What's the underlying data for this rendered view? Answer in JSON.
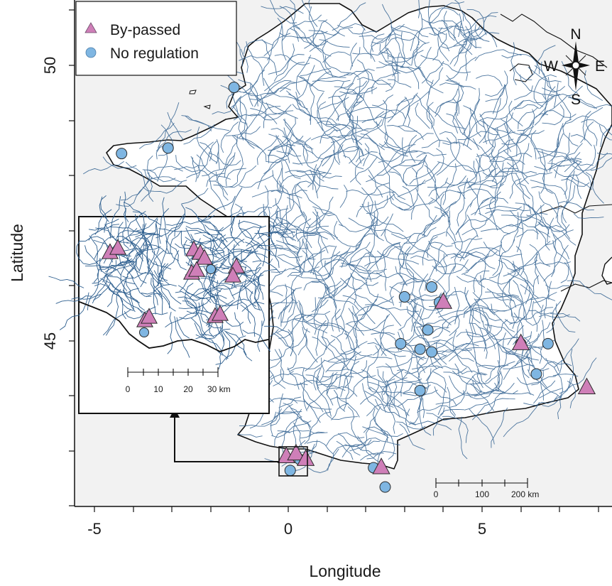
{
  "axes": {
    "xlabel": "Longitude",
    "ylabel": "Latitude",
    "xticks": [
      "-5",
      "0",
      "5"
    ],
    "yticks": [
      "50",
      "45"
    ]
  },
  "legend": {
    "bypassed": "By-passed",
    "noregulation": "No regulation"
  },
  "compass": {
    "n": "N",
    "s": "S",
    "e": "E",
    "w": "W"
  },
  "scale_main": {
    "labels": [
      "0",
      "100",
      "200 km"
    ]
  },
  "scale_inset": {
    "labels": [
      "0",
      "10",
      "20",
      "30 km"
    ]
  },
  "colors": {
    "bypassed": "#cf7fb8",
    "noregulation": "#7fb6e2",
    "river": "#2e5f8f",
    "land": "#ffffff",
    "background": "#f2f2f2"
  },
  "sites": {
    "noregulation_main": [
      {
        "lon": -1.4,
        "lat": 49.6
      },
      {
        "lon": -4.3,
        "lat": 48.4
      },
      {
        "lon": -3.1,
        "lat": 48.5
      },
      {
        "lon": 3.7,
        "lat": 45.98
      },
      {
        "lon": 3.0,
        "lat": 45.8
      },
      {
        "lon": 3.9,
        "lat": 45.7
      },
      {
        "lon": 3.6,
        "lat": 45.2
      },
      {
        "lon": 2.9,
        "lat": 44.95
      },
      {
        "lon": 3.4,
        "lat": 44.85
      },
      {
        "lon": 3.7,
        "lat": 44.8
      },
      {
        "lon": 3.4,
        "lat": 44.1
      },
      {
        "lon": 6.0,
        "lat": 44.95
      },
      {
        "lon": 6.7,
        "lat": 44.95
      },
      {
        "lon": 6.4,
        "lat": 44.4
      },
      {
        "lon": 2.2,
        "lat": 42.7
      },
      {
        "lon": 2.5,
        "lat": 42.35
      },
      {
        "lon": 0.05,
        "lat": 42.65
      },
      {
        "lon": 0.3,
        "lat": 42.85
      }
    ],
    "bypassed_main": [
      {
        "lon": 4.0,
        "lat": 45.7
      },
      {
        "lon": 6.0,
        "lat": 44.95
      },
      {
        "lon": 7.7,
        "lat": 44.15
      },
      {
        "lon": 2.4,
        "lat": 42.7
      },
      {
        "lon": -0.05,
        "lat": 42.9
      },
      {
        "lon": 0.2,
        "lat": 42.95
      },
      {
        "lon": 0.45,
        "lat": 42.85
      }
    ],
    "inset_bypassed": [
      {
        "x": 155,
        "y": 356
      },
      {
        "x": 166,
        "y": 350
      },
      {
        "x": 273,
        "y": 352
      },
      {
        "x": 282,
        "y": 357
      },
      {
        "x": 288,
        "y": 364
      },
      {
        "x": 270,
        "y": 385
      },
      {
        "x": 277,
        "y": 381
      },
      {
        "x": 333,
        "y": 376
      },
      {
        "x": 328,
        "y": 389
      },
      {
        "x": 204,
        "y": 452
      },
      {
        "x": 210,
        "y": 447
      },
      {
        "x": 303,
        "y": 446
      },
      {
        "x": 310,
        "y": 443
      }
    ],
    "inset_noregulation": [
      {
        "x": 297,
        "y": 379
      },
      {
        "x": 203,
        "y": 468
      }
    ]
  }
}
